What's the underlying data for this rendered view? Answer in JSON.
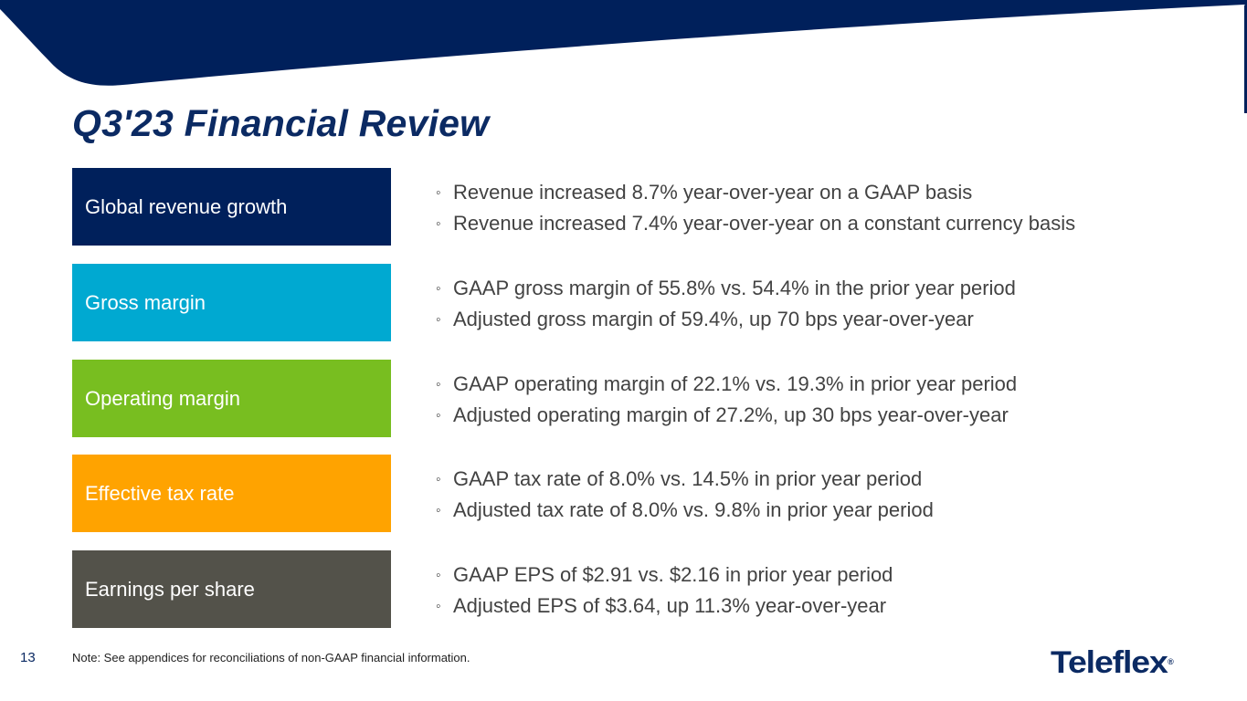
{
  "slide": {
    "title": "Q3'23 Financial Review",
    "page_number": "13",
    "footnote": "Note: See appendices for reconciliations of non-GAAP financial information.",
    "logo_text": "Teleflex",
    "logo_registered_mark": "®",
    "bullet_glyph": "◦"
  },
  "colors": {
    "header_navy": "#00205b",
    "title_navy": "#0b2a63",
    "body_text": "#424242"
  },
  "rows": [
    {
      "label": "Global revenue growth",
      "color": "#00205b",
      "bullets": [
        "Revenue increased 8.7% year-over-year on a GAAP basis",
        "Revenue increased 7.4% year-over-year on a constant currency basis"
      ]
    },
    {
      "label": "Gross margin",
      "color": "#00a9d1",
      "bullets": [
        "GAAP gross margin of 55.8% vs. 54.4% in the prior year period",
        "Adjusted gross margin of 59.4%, up 70 bps year-over-year"
      ]
    },
    {
      "label": "Operating margin",
      "color": "#78be20",
      "bullets": [
        "GAAP operating margin of 22.1% vs. 19.3% in prior year period",
        "Adjusted operating margin of 27.2%, up 30 bps year-over-year"
      ]
    },
    {
      "label": "Effective tax rate",
      "color": "#ffa300",
      "bullets": [
        "GAAP tax rate of 8.0% vs. 14.5% in prior year period",
        "Adjusted tax rate of 8.0% vs. 9.8% in prior year period"
      ]
    },
    {
      "label": "Earnings per share",
      "color": "#53524a",
      "bullets": [
        "GAAP EPS of $2.91 vs. $2.16 in prior year period",
        "Adjusted EPS of $3.64, up 11.3% year-over-year"
      ]
    }
  ]
}
